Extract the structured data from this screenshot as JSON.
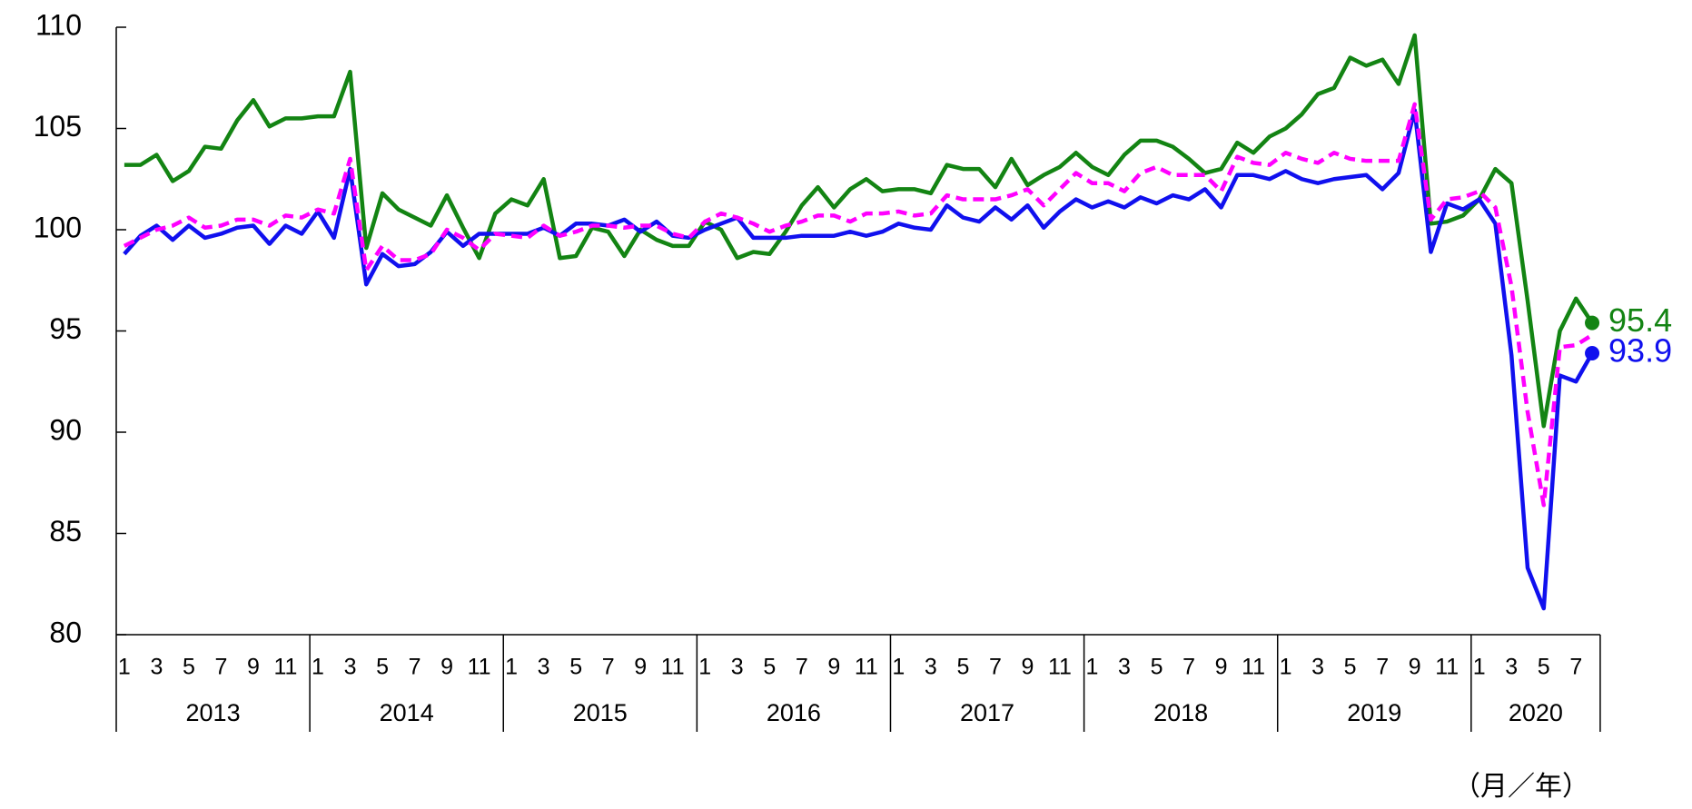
{
  "chart_data": {
    "type": "line",
    "categories": [
      "1",
      null,
      "3",
      null,
      "5",
      null,
      "7",
      null,
      "9",
      null,
      "11",
      null,
      "1",
      null,
      "3",
      null,
      "5",
      null,
      "7",
      null,
      "9",
      null,
      "11",
      null,
      "1",
      null,
      "3",
      null,
      "5",
      null,
      "7",
      null,
      "9",
      null,
      "11",
      null,
      "1",
      null,
      "3",
      null,
      "5",
      null,
      "7",
      null,
      "9",
      null,
      "11",
      null,
      "1",
      null,
      "3",
      null,
      "5",
      null,
      "7",
      null,
      "9",
      null,
      "11",
      null,
      "1",
      null,
      "3",
      null,
      "5",
      null,
      "7",
      null,
      "9",
      null,
      "11",
      null,
      "1",
      null,
      "3",
      null,
      "5",
      null,
      "7",
      null,
      "9",
      null,
      "11",
      null,
      "1",
      null,
      "3",
      null,
      "5",
      null,
      "7",
      null
    ],
    "years": [
      "2013",
      "2014",
      "2015",
      "2016",
      "2017",
      "2018",
      "2019",
      "2020"
    ],
    "x_label": "（月／年）",
    "series": [
      {
        "color": "#138413",
        "dashed": false,
        "end_label": true,
        "values": [
          103.2,
          103.2,
          103.7,
          102.4,
          102.9,
          104.1,
          104.0,
          105.4,
          106.4,
          105.1,
          105.5,
          105.5,
          105.6,
          105.6,
          107.8,
          99.1,
          101.8,
          101.0,
          100.6,
          100.2,
          101.7,
          100.1,
          98.6,
          100.8,
          101.5,
          101.2,
          102.5,
          98.6,
          98.7,
          100.1,
          99.9,
          98.7,
          100.0,
          99.5,
          99.2,
          99.2,
          100.4,
          100.0,
          98.6,
          98.9,
          98.8,
          99.9,
          101.2,
          102.1,
          101.1,
          102.0,
          102.5,
          101.9,
          102.0,
          102.0,
          101.8,
          103.2,
          103.0,
          103.0,
          102.1,
          103.5,
          102.2,
          102.7,
          103.1,
          103.8,
          103.1,
          102.7,
          103.7,
          104.4,
          104.4,
          104.1,
          103.5,
          102.8,
          103.0,
          104.3,
          103.8,
          104.6,
          105.0,
          105.7,
          106.7,
          107.0,
          108.5,
          108.1,
          108.4,
          107.2,
          109.6,
          100.3,
          100.4,
          100.7,
          101.5,
          103.0,
          102.3,
          96.5,
          90.3,
          95.0,
          96.6,
          95.4
        ]
      },
      {
        "color": "#ff00ff",
        "dashed": true,
        "end_label": false,
        "values": [
          99.2,
          99.6,
          100.0,
          100.2,
          100.6,
          100.1,
          100.2,
          100.5,
          100.5,
          100.2,
          100.7,
          100.6,
          101.0,
          100.8,
          103.5,
          98.0,
          99.2,
          98.5,
          98.5,
          98.8,
          100.0,
          99.6,
          99.0,
          99.8,
          99.7,
          99.6,
          100.2,
          99.7,
          99.9,
          100.2,
          100.2,
          100.1,
          100.2,
          100.2,
          99.8,
          99.6,
          100.4,
          100.8,
          100.6,
          100.3,
          99.9,
          100.2,
          100.4,
          100.7,
          100.7,
          100.4,
          100.8,
          100.8,
          100.9,
          100.7,
          100.8,
          101.7,
          101.5,
          101.5,
          101.5,
          101.7,
          102.0,
          101.2,
          102.0,
          102.8,
          102.3,
          102.3,
          101.9,
          102.8,
          103.1,
          102.7,
          102.7,
          102.7,
          101.9,
          103.6,
          103.3,
          103.2,
          103.8,
          103.5,
          103.3,
          103.8,
          103.5,
          103.4,
          103.4,
          103.4,
          106.2,
          100.5,
          101.5,
          101.6,
          101.9,
          101.1,
          97.2,
          91.0,
          86.4,
          94.2,
          94.3,
          94.8
        ]
      },
      {
        "color": "#1010ee",
        "dashed": false,
        "end_label": true,
        "values": [
          98.8,
          99.7,
          100.2,
          99.5,
          100.2,
          99.6,
          99.8,
          100.1,
          100.2,
          99.3,
          100.2,
          99.8,
          100.9,
          99.6,
          103.0,
          97.3,
          98.8,
          98.2,
          98.3,
          98.9,
          99.9,
          99.2,
          99.8,
          99.8,
          99.8,
          99.8,
          100.1,
          99.7,
          100.3,
          100.3,
          100.2,
          100.5,
          99.9,
          100.4,
          99.7,
          99.6,
          100.0,
          100.3,
          100.6,
          99.6,
          99.6,
          99.6,
          99.7,
          99.7,
          99.7,
          99.9,
          99.7,
          99.9,
          100.3,
          100.1,
          100.0,
          101.2,
          100.6,
          100.4,
          101.1,
          100.5,
          101.2,
          100.1,
          100.9,
          101.5,
          101.1,
          101.4,
          101.1,
          101.6,
          101.3,
          101.7,
          101.5,
          102.0,
          101.1,
          102.7,
          102.7,
          102.5,
          102.9,
          102.5,
          102.3,
          102.5,
          102.6,
          102.7,
          102.0,
          102.8,
          105.9,
          98.9,
          101.3,
          101.0,
          101.5,
          100.3,
          93.8,
          83.3,
          81.3,
          92.8,
          92.5,
          93.9
        ]
      }
    ],
    "ylim": [
      80,
      110
    ],
    "yticks": [
      80,
      85,
      90,
      95,
      100,
      105,
      110
    ],
    "grid": false
  }
}
